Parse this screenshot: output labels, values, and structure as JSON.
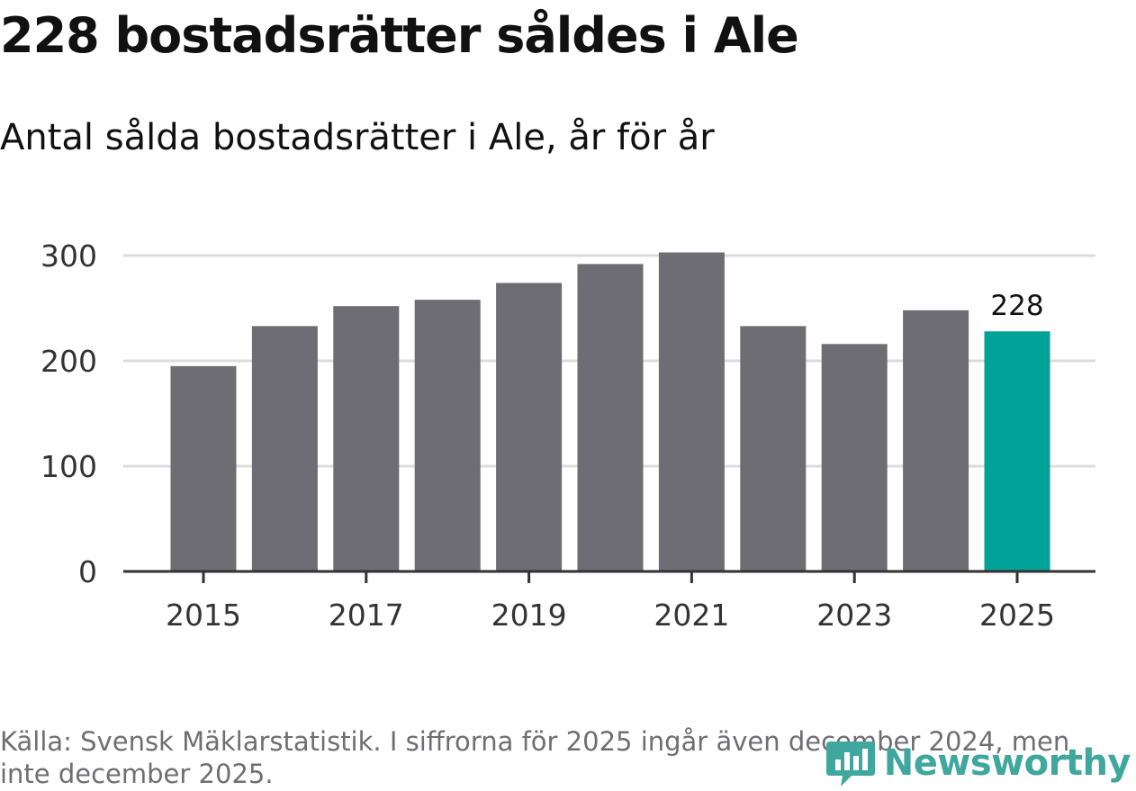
{
  "header": {
    "title": "228 bostadsrätter såldes i Ale",
    "subtitle": "Antal sålda bostadsrätter i Ale, år för år"
  },
  "footer": {
    "source": "Källa: Svensk Mäklarstatistik. I siffrorna för 2025 ingår även december 2024, men inte december 2025.",
    "brand": "Newsworthy",
    "logo_icon": "newsworthy-logo-icon"
  },
  "colors": {
    "bar": "#6e6d73",
    "highlight": "#00a29a",
    "grid": "#dcdcdc",
    "axis": "#333333",
    "brand": "#3fa79e"
  },
  "chart_data": {
    "type": "bar",
    "categories": [
      "2015",
      "2016",
      "2017",
      "2018",
      "2019",
      "2020",
      "2021",
      "2022",
      "2023",
      "2024",
      "2025"
    ],
    "values": [
      195,
      233,
      252,
      258,
      274,
      292,
      303,
      233,
      216,
      248,
      228
    ],
    "highlight_index": 10,
    "highlight_label": "228",
    "x_tick_labels": [
      "2015",
      "2017",
      "2019",
      "2021",
      "2023",
      "2025"
    ],
    "y_ticks": [
      0,
      100,
      200,
      300
    ],
    "ylim": [
      0,
      300
    ],
    "title": "228 bostadsrätter såldes i Ale",
    "subtitle": "Antal sålda bostadsrätter i Ale, år för år",
    "xlabel": "",
    "ylabel": "",
    "grid": true,
    "legend": "none"
  }
}
